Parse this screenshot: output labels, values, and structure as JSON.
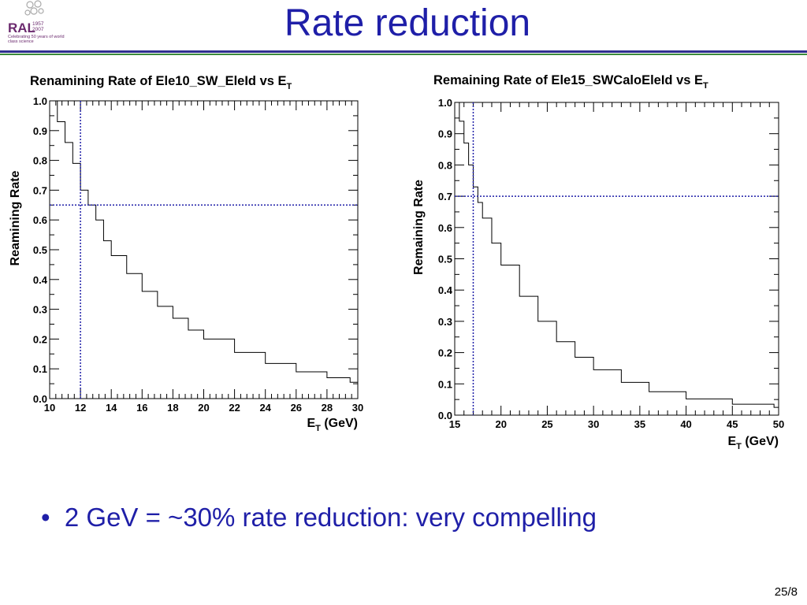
{
  "slide": {
    "title": "Rate reduction",
    "bullet": "2 GeV = ~30% rate reduction: very compelling",
    "page_number": "25/8",
    "logo": {
      "text": "RAL",
      "year_start": "1957",
      "year_end": "2007",
      "tagline": "Celebrating 50 years of world class science"
    }
  },
  "colors": {
    "title": "#1f1fa8",
    "cut_line": "#1f1fa8",
    "histogram": "#000000",
    "rule_top": "#2e2e8f",
    "rule_bottom": "#3a8a3a"
  },
  "chart_data": [
    {
      "type": "line",
      "step": true,
      "title": "Renamining Rate of Ele10_SW_EleId vs E",
      "title_sub": "T",
      "xlabel": "E",
      "xlabel_sub": "T",
      "xlabel_unit": " (GeV)",
      "ylabel": "Reamining Rate",
      "xlim": [
        10,
        30
      ],
      "ylim": [
        0,
        1
      ],
      "xticks": [
        10,
        12,
        14,
        16,
        18,
        20,
        22,
        24,
        26,
        28,
        30
      ],
      "xtick_labels": [
        "10",
        "12",
        "14",
        "16",
        "18",
        "20",
        "22",
        "24",
        "26",
        "28",
        "30"
      ],
      "yticks": [
        0,
        0.1,
        0.2,
        0.3,
        0.4,
        0.5,
        0.6,
        0.7,
        0.8,
        0.9,
        1.0
      ],
      "ytick_labels": [
        "0.0",
        "0.1",
        "0.2",
        "0.3",
        "0.4",
        "0.5",
        "0.6",
        "0.7",
        "0.8",
        "0.9",
        "1.0"
      ],
      "cut": {
        "x": 12,
        "y": 0.65
      },
      "x": [
        10.0,
        10.5,
        11.0,
        11.5,
        12.0,
        12.5,
        13.0,
        13.5,
        14.0,
        15.0,
        16.0,
        17.0,
        18.0,
        19.0,
        20.0,
        22.0,
        24.0,
        26.0,
        28.0,
        29.5
      ],
      "y": [
        1.0,
        0.93,
        0.86,
        0.79,
        0.7,
        0.65,
        0.6,
        0.53,
        0.48,
        0.42,
        0.36,
        0.31,
        0.27,
        0.23,
        0.2,
        0.155,
        0.118,
        0.09,
        0.07,
        0.055
      ]
    },
    {
      "type": "line",
      "step": true,
      "title": "Remaining Rate of Ele15_SWCaloEleId vs E",
      "title_sub": "T",
      "xlabel": "E",
      "xlabel_sub": "T",
      "xlabel_unit": " (GeV)",
      "ylabel": "Remaining Rate",
      "xlim": [
        15,
        50
      ],
      "ylim": [
        0,
        1
      ],
      "xticks": [
        15,
        20,
        25,
        30,
        35,
        40,
        45,
        50
      ],
      "xtick_labels": [
        "15",
        "20",
        "25",
        "30",
        "35",
        "40",
        "45",
        "50"
      ],
      "yticks": [
        0,
        0.1,
        0.2,
        0.3,
        0.4,
        0.5,
        0.6,
        0.7,
        0.8,
        0.9,
        1.0
      ],
      "ytick_labels": [
        "0.0",
        "0.1",
        "0.2",
        "0.3",
        "0.4",
        "0.5",
        "0.6",
        "0.7",
        "0.8",
        "0.9",
        "1.0"
      ],
      "cut": {
        "x": 17,
        "y": 0.7
      },
      "x": [
        15.0,
        15.5,
        16.0,
        16.5,
        17.0,
        17.5,
        18.0,
        19.0,
        20.0,
        22.0,
        24.0,
        26.0,
        28.0,
        30.0,
        33.0,
        36.0,
        40.0,
        45.0,
        49.5
      ],
      "y": [
        1.0,
        0.94,
        0.87,
        0.8,
        0.73,
        0.68,
        0.63,
        0.55,
        0.48,
        0.38,
        0.3,
        0.235,
        0.185,
        0.145,
        0.105,
        0.075,
        0.052,
        0.035,
        0.025
      ]
    }
  ]
}
